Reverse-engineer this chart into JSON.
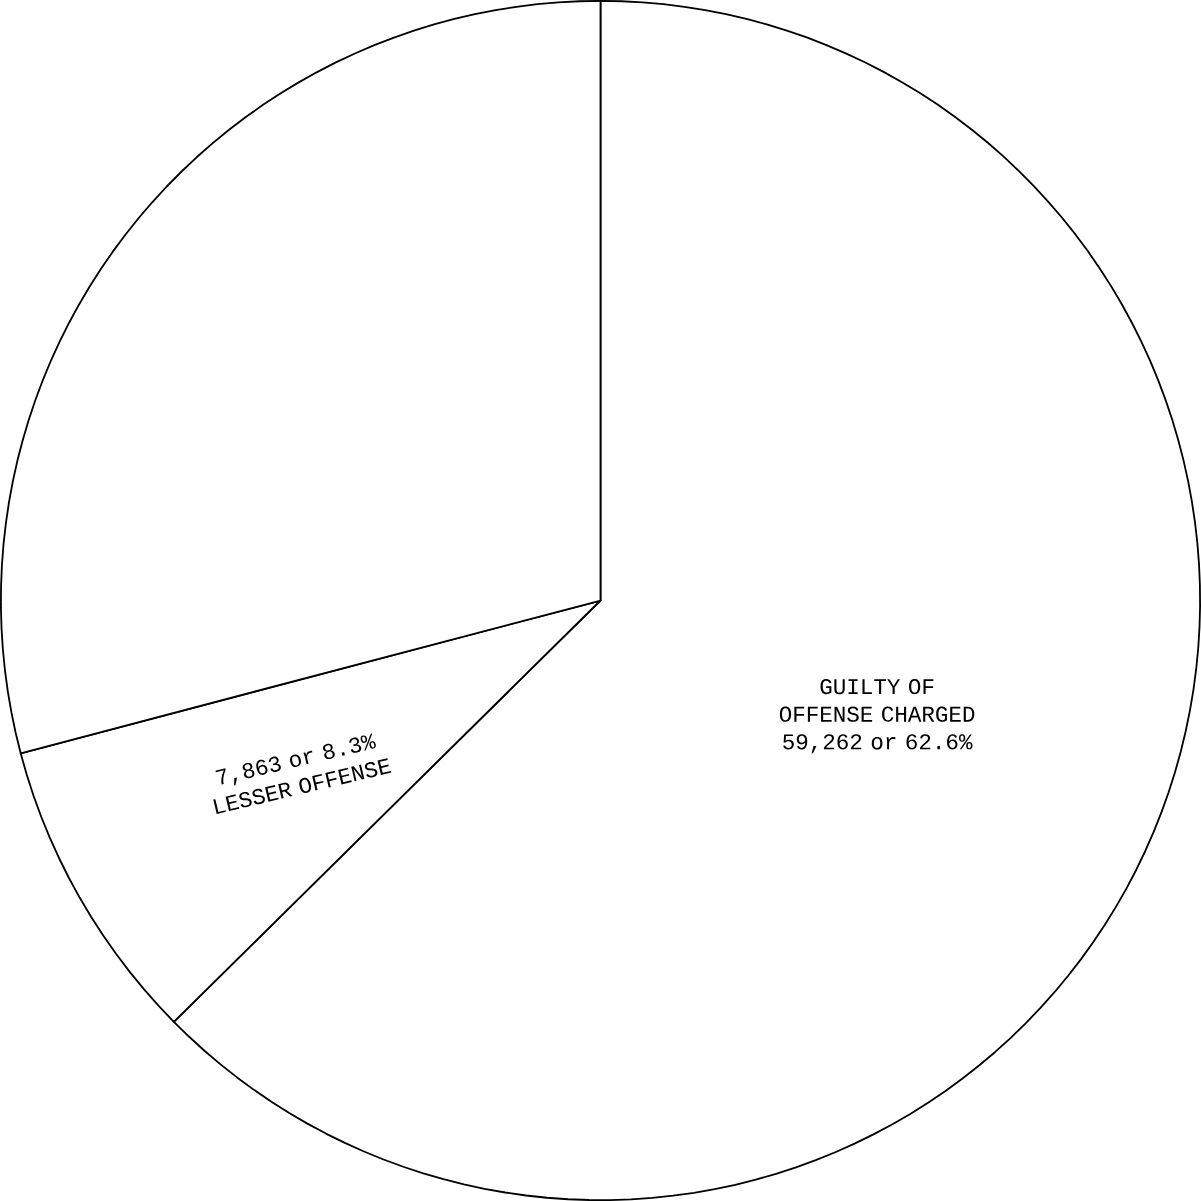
{
  "chart_data": {
    "type": "pie",
    "categories": [
      "GUILTY OF OFFENSE CHARGED",
      "LESSER OFFENSE",
      null
    ],
    "values": [
      62.6,
      8.3,
      29.1
    ],
    "value_labels": [
      "59,262 or 62.6%",
      "7,863 or 8.3%",
      null
    ],
    "colors": [
      "#ffffff",
      "#ffffff",
      "#ffffff"
    ]
  }
}
